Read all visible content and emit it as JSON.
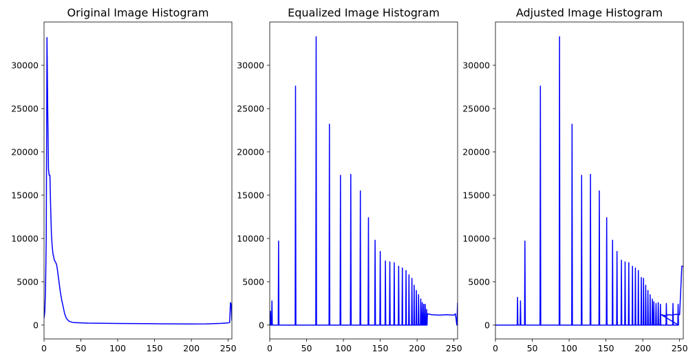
{
  "chart_data": [
    {
      "type": "line",
      "title": "Original Image Histogram",
      "xlabel": "",
      "ylabel": "",
      "xlim": [
        0,
        255
      ],
      "ylim": [
        -1600,
        35000
      ],
      "xticks": [
        0,
        50,
        100,
        150,
        200,
        250
      ],
      "yticks": [
        0,
        5000,
        10000,
        15000,
        20000,
        25000,
        30000
      ],
      "grid": false,
      "line_color": "#0000ff",
      "series": [
        {
          "x": [
            0,
            1,
            2,
            3,
            4,
            5,
            6,
            7,
            8,
            9,
            10,
            11,
            12,
            14,
            16,
            17,
            18,
            20,
            22,
            24,
            26,
            28,
            30,
            32,
            34,
            36,
            38,
            40,
            45,
            50,
            60,
            80,
            100,
            120,
            140,
            160,
            180,
            200,
            220,
            240,
            250,
            252,
            253,
            254,
            255
          ],
          "y": [
            800,
            1500,
            4000,
            10000,
            33200,
            25000,
            18000,
            17300,
            17300,
            13500,
            10500,
            9200,
            8300,
            7500,
            7200,
            7000,
            6500,
            5200,
            3900,
            2900,
            2100,
            1300,
            850,
            600,
            450,
            380,
            330,
            300,
            280,
            260,
            230,
            210,
            190,
            175,
            165,
            150,
            140,
            130,
            140,
            200,
            260,
            300,
            2600,
            2400,
            500
          ]
        }
      ]
    },
    {
      "type": "line",
      "title": "Equalized Image Histogram",
      "xlabel": "",
      "ylabel": "",
      "xlim": [
        0,
        255
      ],
      "ylim": [
        -1600,
        35000
      ],
      "xticks": [
        0,
        50,
        100,
        150,
        200,
        250
      ],
      "yticks": [
        0,
        5000,
        10000,
        15000,
        20000,
        25000,
        30000
      ],
      "grid": false,
      "line_color": "#0000ff",
      "spikes": [
        [
          1,
          1600
        ],
        [
          3,
          2800
        ],
        [
          12,
          9700
        ],
        [
          35,
          27600
        ],
        [
          63,
          33300
        ],
        [
          81,
          23200
        ],
        [
          96,
          17300
        ],
        [
          110,
          17400
        ],
        [
          123,
          15500
        ],
        [
          134,
          12400
        ],
        [
          143,
          9800
        ],
        [
          150,
          8500
        ],
        [
          157,
          7400
        ],
        [
          163,
          7300
        ],
        [
          169,
          7200
        ],
        [
          175,
          6800
        ],
        [
          180,
          6600
        ],
        [
          185,
          6300
        ],
        [
          189,
          5800
        ],
        [
          193,
          5400
        ],
        [
          196,
          4600
        ],
        [
          199,
          4000
        ],
        [
          202,
          3500
        ],
        [
          205,
          3000
        ],
        [
          207,
          2600
        ],
        [
          209,
          2400
        ],
        [
          211,
          2400
        ],
        [
          213,
          1800
        ]
      ],
      "tail": {
        "x": [
          214,
          220,
          230,
          240,
          250,
          252,
          254,
          255
        ],
        "y": [
          1300,
          1200,
          1150,
          1200,
          1150,
          1300,
          0,
          2600
        ]
      }
    },
    {
      "type": "line",
      "title": "Adjusted Image Histogram",
      "xlabel": "",
      "ylabel": "",
      "xlim": [
        0,
        255
      ],
      "ylim": [
        -1600,
        35000
      ],
      "xticks": [
        0,
        50,
        100,
        150,
        200,
        250
      ],
      "yticks": [
        0,
        5000,
        10000,
        15000,
        20000,
        25000,
        30000
      ],
      "grid": false,
      "line_color": "#0000ff",
      "spikes": [
        [
          30,
          3200
        ],
        [
          34,
          2800
        ],
        [
          40,
          9700
        ],
        [
          61,
          27600
        ],
        [
          87,
          33300
        ],
        [
          104,
          23200
        ],
        [
          117,
          17300
        ],
        [
          129,
          17400
        ],
        [
          141,
          15500
        ],
        [
          151,
          12400
        ],
        [
          159,
          9800
        ],
        [
          165,
          8500
        ],
        [
          171,
          7500
        ],
        [
          176,
          7300
        ],
        [
          181,
          7200
        ],
        [
          186,
          6800
        ],
        [
          190,
          6600
        ],
        [
          194,
          6300
        ],
        [
          198,
          5500
        ],
        [
          201,
          5400
        ],
        [
          204,
          4600
        ],
        [
          207,
          4000
        ],
        [
          210,
          3500
        ],
        [
          213,
          3000
        ],
        [
          215,
          2700
        ],
        [
          218,
          2500
        ],
        [
          221,
          2600
        ],
        [
          224,
          2400
        ],
        [
          232,
          2500
        ],
        [
          241,
          2500
        ],
        [
          248,
          2400
        ]
      ],
      "tail": {
        "x": [
          225,
          230,
          235,
          240,
          245,
          250,
          253,
          254,
          255
        ],
        "y": [
          1200,
          1100,
          1200,
          1150,
          1250,
          1200,
          6800,
          6800,
          6800
        ]
      }
    }
  ]
}
